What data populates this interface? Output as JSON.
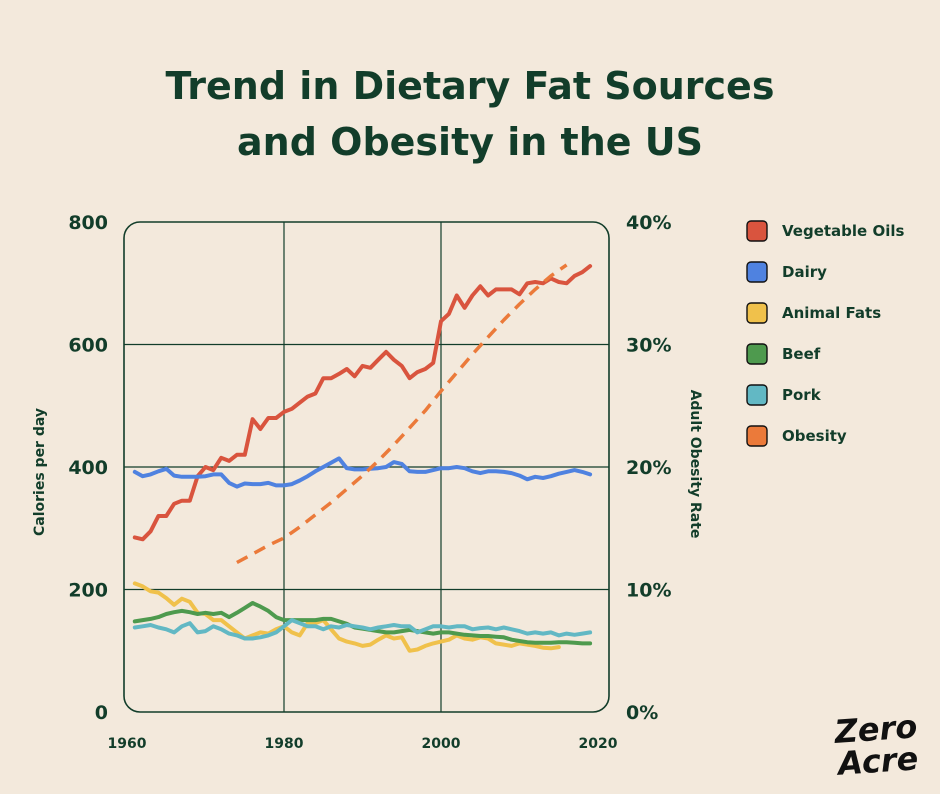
{
  "title_lines": [
    "Trend in Dietary Fat Sources",
    "and Obesity in the US"
  ],
  "logo_lines": [
    "Zero",
    "Acre"
  ],
  "colors": {
    "background": "#f3e9dc",
    "text": "#123d2a",
    "grid": "#123d2a"
  },
  "chart_data": {
    "type": "line",
    "title": "Trend in Dietary Fat Sources and Obesity in the US",
    "xlabel": "",
    "ylabel": "Calories per day",
    "y2label": "Adult Obesity Rate",
    "xlim": [
      1960,
      2020
    ],
    "ylim": [
      0,
      800
    ],
    "y2lim": [
      0,
      40
    ],
    "x_ticks": [
      "1960",
      "1980",
      "2000",
      "2020"
    ],
    "y_ticks": [
      "0",
      "200",
      "400",
      "600",
      "800"
    ],
    "y2_ticks": [
      "0%",
      "10%",
      "20%",
      "30%",
      "40%"
    ],
    "grid": true,
    "legend_position": "right",
    "series": [
      {
        "name": "Vegetable Oils",
        "color": "#d9543e",
        "axis": "left",
        "dash": false,
        "x": [
          1961,
          1962,
          1963,
          1964,
          1965,
          1966,
          1967,
          1968,
          1969,
          1970,
          1971,
          1972,
          1973,
          1974,
          1975,
          1976,
          1977,
          1978,
          1979,
          1980,
          1981,
          1982,
          1983,
          1984,
          1985,
          1986,
          1987,
          1988,
          1989,
          1990,
          1991,
          1992,
          1993,
          1994,
          1995,
          1996,
          1997,
          1998,
          1999,
          2000,
          2001,
          2002,
          2003,
          2004,
          2005,
          2006,
          2007,
          2008,
          2009,
          2010,
          2011,
          2012,
          2013,
          2014,
          2015,
          2016,
          2017,
          2018,
          2019
        ],
        "values": [
          285,
          282,
          295,
          320,
          320,
          340,
          345,
          345,
          385,
          400,
          395,
          415,
          410,
          420,
          420,
          478,
          462,
          480,
          480,
          490,
          495,
          505,
          515,
          520,
          545,
          545,
          552,
          560,
          548,
          565,
          562,
          575,
          588,
          575,
          565,
          545,
          555,
          560,
          570,
          638,
          650,
          680,
          660,
          680,
          695,
          680,
          690,
          690,
          690,
          682,
          700,
          702,
          700,
          708,
          702,
          700,
          712,
          718,
          728
        ],
        "labels": []
      },
      {
        "name": "Dairy",
        "color": "#4f82e0",
        "axis": "left",
        "dash": false,
        "x": [
          1961,
          1962,
          1963,
          1964,
          1965,
          1966,
          1967,
          1968,
          1969,
          1970,
          1971,
          1972,
          1973,
          1974,
          1975,
          1976,
          1977,
          1978,
          1979,
          1980,
          1981,
          1982,
          1983,
          1984,
          1985,
          1986,
          1987,
          1988,
          1989,
          1990,
          1991,
          1992,
          1993,
          1994,
          1995,
          1996,
          1997,
          1998,
          1999,
          2000,
          2001,
          2002,
          2003,
          2004,
          2005,
          2006,
          2007,
          2008,
          2009,
          2010,
          2011,
          2012,
          2013,
          2014,
          2015,
          2016,
          2017,
          2018,
          2019
        ],
        "values": [
          392,
          385,
          388,
          393,
          397,
          386,
          384,
          384,
          384,
          385,
          388,
          388,
          374,
          368,
          373,
          372,
          372,
          374,
          370,
          370,
          372,
          378,
          385,
          393,
          400,
          407,
          414,
          398,
          396,
          396,
          397,
          398,
          400,
          408,
          405,
          393,
          392,
          392,
          395,
          398,
          398,
          400,
          398,
          393,
          390,
          393,
          393,
          392,
          390,
          386,
          380,
          384,
          382,
          385,
          389,
          392,
          395,
          392,
          388
        ],
        "labels": []
      },
      {
        "name": "Animal Fats",
        "color": "#f0c14b",
        "axis": "left",
        "dash": false,
        "x": [
          1961,
          1962,
          1963,
          1964,
          1965,
          1966,
          1967,
          1968,
          1969,
          1970,
          1971,
          1972,
          1973,
          1974,
          1975,
          1976,
          1977,
          1978,
          1979,
          1980,
          1981,
          1982,
          1983,
          1984,
          1985,
          1986,
          1987,
          1988,
          1989,
          1990,
          1991,
          1992,
          1993,
          1994,
          1995,
          1996,
          1997,
          1998,
          1999,
          2000,
          2001,
          2002,
          2003,
          2004,
          2005,
          2006,
          2007,
          2008,
          2009,
          2010,
          2011,
          2012,
          2013,
          2014,
          2015
        ],
        "values": [
          210,
          205,
          197,
          195,
          186,
          175,
          185,
          180,
          162,
          160,
          150,
          150,
          140,
          130,
          120,
          125,
          130,
          128,
          135,
          140,
          130,
          125,
          145,
          145,
          150,
          135,
          120,
          115,
          112,
          108,
          110,
          118,
          125,
          120,
          122,
          100,
          102,
          108,
          112,
          115,
          118,
          125,
          120,
          118,
          122,
          120,
          112,
          110,
          108,
          112,
          110,
          108,
          105,
          104,
          106
        ],
        "labels": []
      },
      {
        "name": "Beef",
        "color": "#4e9a4e",
        "axis": "left",
        "dash": false,
        "x": [
          1961,
          1962,
          1963,
          1964,
          1965,
          1966,
          1967,
          1968,
          1969,
          1970,
          1971,
          1972,
          1973,
          1974,
          1975,
          1976,
          1977,
          1978,
          1979,
          1980,
          1981,
          1982,
          1983,
          1984,
          1985,
          1986,
          1987,
          1988,
          1989,
          1990,
          1991,
          1992,
          1993,
          1994,
          1995,
          1996,
          1997,
          1998,
          1999,
          2000,
          2001,
          2002,
          2003,
          2004,
          2005,
          2006,
          2007,
          2008,
          2009,
          2010,
          2011,
          2012,
          2013,
          2014,
          2015,
          2016,
          2017,
          2018,
          2019
        ],
        "values": [
          148,
          150,
          152,
          155,
          160,
          163,
          165,
          163,
          160,
          162,
          160,
          162,
          155,
          162,
          170,
          178,
          172,
          165,
          155,
          150,
          150,
          150,
          150,
          150,
          152,
          152,
          148,
          144,
          138,
          136,
          134,
          132,
          130,
          130,
          132,
          134,
          132,
          130,
          128,
          130,
          130,
          128,
          126,
          125,
          124,
          124,
          123,
          122,
          118,
          116,
          114,
          113,
          113,
          113,
          114,
          114,
          113,
          112,
          112
        ],
        "labels": []
      },
      {
        "name": "Pork",
        "color": "#62b8c4",
        "axis": "left",
        "dash": false,
        "x": [
          1961,
          1962,
          1963,
          1964,
          1965,
          1966,
          1967,
          1968,
          1969,
          1970,
          1971,
          1972,
          1973,
          1974,
          1975,
          1976,
          1977,
          1978,
          1979,
          1980,
          1981,
          1982,
          1983,
          1984,
          1985,
          1986,
          1987,
          1988,
          1989,
          1990,
          1991,
          1992,
          1993,
          1994,
          1995,
          1996,
          1997,
          1998,
          1999,
          2000,
          2001,
          2002,
          2003,
          2004,
          2005,
          2006,
          2007,
          2008,
          2009,
          2010,
          2011,
          2012,
          2013,
          2014,
          2015,
          2016,
          2017,
          2018,
          2019
        ],
        "values": [
          138,
          140,
          142,
          138,
          135,
          130,
          140,
          145,
          130,
          132,
          140,
          135,
          128,
          125,
          120,
          120,
          122,
          125,
          130,
          140,
          150,
          145,
          140,
          140,
          135,
          140,
          138,
          142,
          140,
          138,
          135,
          138,
          140,
          142,
          140,
          140,
          130,
          135,
          140,
          140,
          138,
          140,
          140,
          135,
          137,
          138,
          135,
          138,
          135,
          132,
          128,
          130,
          128,
          130,
          125,
          128,
          126,
          128,
          130
        ],
        "labels": []
      },
      {
        "name": "Obesity",
        "color": "#eb7a3a",
        "axis": "right",
        "dash": true,
        "x": [
          1974,
          1976,
          1978,
          1980,
          1982,
          1984,
          1986,
          1988,
          1990,
          1992,
          1994,
          1996,
          1998,
          2000,
          2002,
          2004,
          2006,
          2008,
          2010,
          2012,
          2014,
          2016
        ],
        "values": [
          12.2,
          12.9,
          13.6,
          14.2,
          15.1,
          16.1,
          17.1,
          18.2,
          19.3,
          20.5,
          21.8,
          23.2,
          24.6,
          26.2,
          27.7,
          29.2,
          30.6,
          32.0,
          33.3,
          34.5,
          35.6,
          36.5
        ],
        "labels": []
      }
    ]
  }
}
